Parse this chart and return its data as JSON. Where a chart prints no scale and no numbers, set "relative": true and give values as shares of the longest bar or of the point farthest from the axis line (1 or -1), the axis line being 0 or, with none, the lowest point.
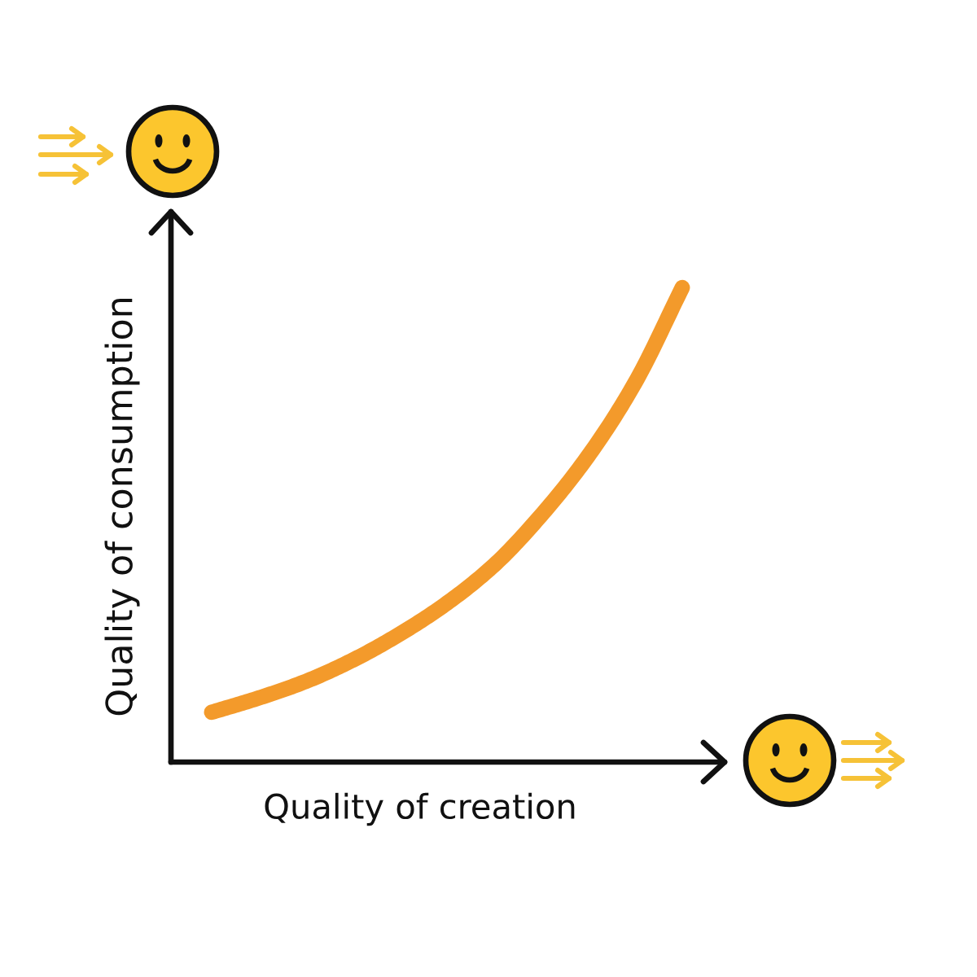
{
  "chart_data": {
    "type": "line",
    "xlabel": "Quality of creation",
    "ylabel": "Quality of consumption",
    "relative": true,
    "categories": [
      null,
      null,
      null,
      null,
      null,
      null,
      null,
      null,
      null,
      null,
      null
    ],
    "series": [
      {
        "color": "#f39a2b",
        "values": [
          0.105,
          0.135,
          0.17,
          0.215,
          0.27,
          0.335,
          0.415,
          0.52,
          0.645,
          0.8,
          1
        ]
      }
    ],
    "line_style": "solid",
    "marker": "none"
  }
}
